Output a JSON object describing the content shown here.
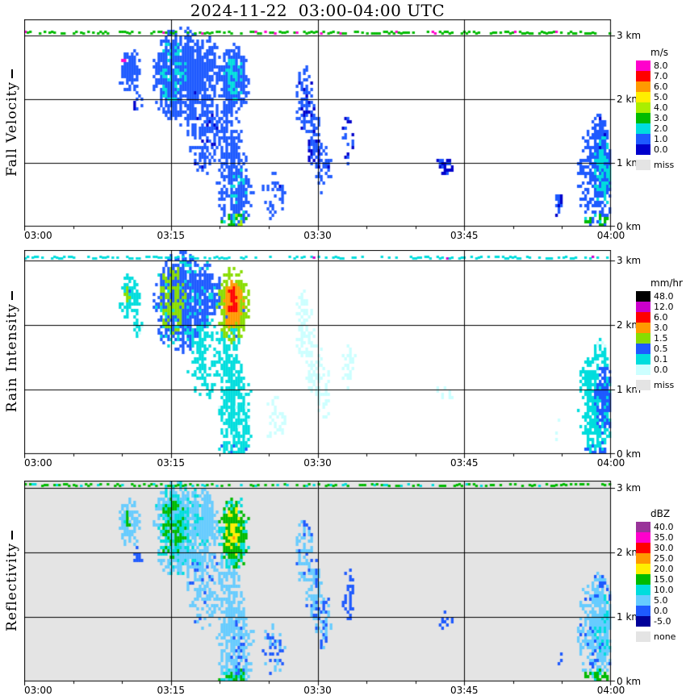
{
  "title": "2024-11-22  03:00-04:00 UTC",
  "axes": {
    "x_ticks": [
      "03:00",
      "03:15",
      "03:30",
      "03:45",
      "04:00"
    ],
    "y_ticks": [
      "0 km",
      "1 km",
      "2 km",
      "3 km"
    ]
  },
  "echo_format": "[time_min, alt_km, half_width_min, half_height_km, density, value]",
  "chart_data": [
    {
      "type": "heatmap",
      "title": "Fall Velocity",
      "unit": "m/s",
      "background": "#ffffff",
      "x_range_minutes": [
        0,
        60
      ],
      "y_range_km": [
        0,
        3.2
      ],
      "scale": [
        {
          "label": "8.0",
          "level": 8,
          "color": "#ff00cc"
        },
        {
          "label": "7.0",
          "level": 7,
          "color": "#ff0000"
        },
        {
          "label": "6.0",
          "level": 6,
          "color": "#ff9900"
        },
        {
          "label": "5.0",
          "level": 5,
          "color": "#ffee00"
        },
        {
          "label": "4.0",
          "level": 4,
          "color": "#aaee00"
        },
        {
          "label": "3.0",
          "level": 3,
          "color": "#00bb00"
        },
        {
          "label": "2.0",
          "level": 2,
          "color": "#00dddd"
        },
        {
          "label": "1.0",
          "level": 1,
          "color": "#1e5aff"
        },
        {
          "label": "0.0",
          "level": 0,
          "color": "#0000cc"
        }
      ],
      "missing": {
        "label": "miss",
        "color": "#e4e4e4"
      },
      "speckles": {
        "density": 0.55,
        "value": 3.2,
        "alt_value": 8.2,
        "alt_prob": 0.05
      },
      "echoes": [
        [
          10.8,
          2.45,
          1.2,
          0.38,
          0.8,
          1.5
        ],
        [
          11.6,
          1.95,
          0.5,
          0.18,
          0.5,
          1.2
        ],
        [
          10.2,
          2.6,
          0.18,
          0.07,
          1.0,
          8.2
        ],
        [
          16.0,
          2.35,
          2.9,
          0.8,
          0.92,
          1.4
        ],
        [
          15.2,
          2.4,
          1.4,
          0.55,
          0.6,
          2.2
        ],
        [
          18.6,
          2.5,
          1.6,
          0.5,
          0.8,
          1.4
        ],
        [
          21.4,
          2.3,
          1.7,
          0.6,
          0.95,
          1.6
        ],
        [
          21.4,
          2.32,
          1.05,
          0.4,
          0.9,
          1.9
        ],
        [
          21.3,
          2.35,
          0.55,
          0.24,
          0.9,
          2.3
        ],
        [
          18.3,
          1.55,
          1.7,
          0.75,
          0.55,
          1.3
        ],
        [
          21.0,
          1.35,
          1.3,
          0.85,
          0.6,
          1.5
        ],
        [
          21.6,
          0.6,
          1.9,
          0.8,
          0.62,
          1.6
        ],
        [
          21.9,
          0.45,
          0.95,
          0.55,
          0.5,
          1.9
        ],
        [
          21.5,
          0.07,
          1.7,
          0.12,
          0.7,
          3.4
        ],
        [
          25.6,
          0.5,
          1.3,
          0.4,
          0.32,
          1.3
        ],
        [
          28.6,
          2.0,
          0.95,
          0.55,
          0.6,
          1.2
        ],
        [
          29.6,
          1.4,
          0.85,
          0.55,
          0.6,
          1.2
        ],
        [
          30.6,
          0.95,
          0.85,
          0.45,
          0.55,
          1.2
        ],
        [
          33.2,
          1.35,
          0.75,
          0.4,
          0.5,
          1.1
        ],
        [
          43.0,
          0.95,
          0.95,
          0.14,
          0.6,
          1.0
        ],
        [
          58.5,
          0.8,
          1.9,
          0.9,
          0.78,
          1.5
        ],
        [
          59.3,
          0.85,
          1.1,
          0.55,
          0.85,
          2.3
        ],
        [
          58.8,
          1.45,
          0.85,
          0.35,
          0.6,
          1.2
        ],
        [
          58.5,
          0.08,
          1.3,
          0.12,
          0.65,
          3.2
        ],
        [
          54.6,
          0.35,
          0.45,
          0.22,
          0.5,
          1.1
        ]
      ]
    },
    {
      "type": "heatmap",
      "title": "Rain Intensity",
      "unit": "mm/hr",
      "background": "#ffffff",
      "x_range_minutes": [
        0,
        60
      ],
      "y_range_km": [
        0,
        3.2
      ],
      "scale": [
        {
          "label": "48.0",
          "level": 48,
          "color": "#000000"
        },
        {
          "label": "12.0",
          "level": 12,
          "color": "#cc00cc"
        },
        {
          "label": "6.0",
          "level": 6,
          "color": "#ff0000"
        },
        {
          "label": "3.0",
          "level": 3,
          "color": "#ff9900"
        },
        {
          "label": "1.5",
          "level": 1.5,
          "color": "#88dd00"
        },
        {
          "label": "0.5",
          "level": 0.5,
          "color": "#1e5aff"
        },
        {
          "label": "0.1",
          "level": 0.1,
          "color": "#00dddd"
        },
        {
          "label": "0.0",
          "level": 0,
          "color": "#ccffff"
        }
      ],
      "missing": {
        "label": "miss",
        "color": "#e4e4e4"
      },
      "speckles": {
        "density": 0.5,
        "value": 0.15,
        "alt_value": 13,
        "alt_prob": 0.03
      },
      "echoes": [
        [
          10.8,
          2.45,
          1.2,
          0.38,
          0.8,
          0.4
        ],
        [
          11.6,
          1.95,
          0.5,
          0.18,
          0.5,
          0.12
        ],
        [
          10.6,
          2.5,
          0.35,
          0.14,
          0.9,
          1.8
        ],
        [
          16.0,
          2.35,
          2.9,
          0.8,
          0.92,
          0.6
        ],
        [
          15.2,
          2.4,
          1.4,
          0.55,
          0.85,
          1.8
        ],
        [
          18.6,
          2.5,
          1.6,
          0.5,
          0.8,
          0.55
        ],
        [
          21.4,
          2.3,
          1.7,
          0.6,
          0.95,
          2.0
        ],
        [
          21.4,
          2.32,
          1.05,
          0.4,
          0.95,
          4.0
        ],
        [
          21.3,
          2.35,
          0.55,
          0.24,
          1.0,
          7.5
        ],
        [
          18.3,
          1.55,
          1.7,
          0.75,
          0.55,
          0.15
        ],
        [
          21.0,
          1.35,
          1.3,
          0.85,
          0.6,
          0.2
        ],
        [
          21.6,
          0.6,
          1.9,
          0.8,
          0.62,
          0.12
        ],
        [
          21.9,
          0.45,
          0.95,
          0.55,
          0.5,
          0.3
        ],
        [
          21.5,
          0.07,
          1.7,
          0.12,
          0.7,
          0.45
        ],
        [
          25.6,
          0.5,
          1.3,
          0.4,
          0.32,
          0.06
        ],
        [
          28.6,
          2.0,
          0.95,
          0.55,
          0.6,
          0.07
        ],
        [
          29.6,
          1.4,
          0.85,
          0.55,
          0.6,
          0.07
        ],
        [
          30.6,
          0.95,
          0.85,
          0.45,
          0.55,
          0.06
        ],
        [
          33.2,
          1.35,
          0.75,
          0.4,
          0.5,
          0.05
        ],
        [
          43.0,
          0.95,
          0.95,
          0.14,
          0.6,
          0.05
        ],
        [
          58.5,
          0.8,
          1.9,
          0.9,
          0.78,
          0.15
        ],
        [
          59.3,
          0.85,
          1.1,
          0.55,
          0.85,
          0.6
        ],
        [
          58.8,
          1.45,
          0.85,
          0.35,
          0.6,
          0.1
        ],
        [
          58.5,
          0.08,
          1.3,
          0.12,
          0.65,
          0.5
        ],
        [
          54.6,
          0.35,
          0.45,
          0.22,
          0.5,
          0.06
        ]
      ]
    },
    {
      "type": "heatmap",
      "title": "Reflectivity",
      "unit": "dBZ",
      "background": "#e4e4e4",
      "x_range_minutes": [
        0,
        60
      ],
      "y_range_km": [
        0,
        3.2
      ],
      "scale": [
        {
          "label": "40.0",
          "level": 40,
          "color": "#993399"
        },
        {
          "label": "35.0",
          "level": 35,
          "color": "#ff00cc"
        },
        {
          "label": "30.0",
          "level": 30,
          "color": "#ff0000"
        },
        {
          "label": "25.0",
          "level": 25,
          "color": "#ff9900"
        },
        {
          "label": "20.0",
          "level": 20,
          "color": "#ffee00"
        },
        {
          "label": "15.0",
          "level": 15,
          "color": "#00bb00"
        },
        {
          "label": "10.0",
          "level": 10,
          "color": "#00dddd"
        },
        {
          "label": "5.0",
          "level": 5,
          "color": "#66ccff"
        },
        {
          "label": "0.0",
          "level": 0,
          "color": "#1e5aff"
        },
        {
          "label": "-5.0",
          "level": -5,
          "color": "#000099"
        }
      ],
      "missing": {
        "label": "none",
        "color": "#e4e4e4"
      },
      "speckles": {
        "density": 0.55,
        "value": 16,
        "alt_value": 11,
        "alt_prob": 0.2
      },
      "echoes": [
        [
          10.8,
          2.45,
          1.2,
          0.38,
          0.8,
          8
        ],
        [
          11.6,
          1.95,
          0.5,
          0.18,
          0.5,
          3
        ],
        [
          10.6,
          2.5,
          0.35,
          0.14,
          0.9,
          16
        ],
        [
          16.0,
          2.35,
          2.9,
          0.8,
          0.92,
          9
        ],
        [
          15.2,
          2.4,
          1.4,
          0.55,
          0.85,
          16
        ],
        [
          18.6,
          2.5,
          1.6,
          0.5,
          0.8,
          8
        ],
        [
          21.4,
          2.3,
          1.7,
          0.6,
          0.95,
          16
        ],
        [
          21.4,
          2.32,
          1.05,
          0.4,
          0.95,
          19
        ],
        [
          21.3,
          2.35,
          0.55,
          0.24,
          1.0,
          21
        ],
        [
          18.3,
          1.55,
          1.7,
          0.75,
          0.55,
          6
        ],
        [
          21.0,
          1.35,
          1.3,
          0.85,
          0.6,
          7
        ],
        [
          21.6,
          0.6,
          1.9,
          0.8,
          0.62,
          7
        ],
        [
          21.9,
          0.45,
          0.95,
          0.55,
          0.5,
          1
        ],
        [
          21.5,
          0.07,
          1.7,
          0.12,
          0.7,
          16
        ],
        [
          25.6,
          0.5,
          1.3,
          0.4,
          0.32,
          5
        ],
        [
          28.6,
          2.0,
          0.95,
          0.55,
          0.6,
          6
        ],
        [
          29.6,
          1.4,
          0.85,
          0.55,
          0.6,
          6
        ],
        [
          30.6,
          0.95,
          0.85,
          0.45,
          0.55,
          5
        ],
        [
          33.2,
          1.35,
          0.75,
          0.4,
          0.5,
          4
        ],
        [
          43.0,
          0.95,
          0.95,
          0.14,
          0.6,
          2
        ],
        [
          58.5,
          0.8,
          1.9,
          0.9,
          0.78,
          6
        ],
        [
          59.3,
          0.85,
          1.1,
          0.55,
          0.85,
          9
        ],
        [
          58.8,
          1.45,
          0.85,
          0.35,
          0.6,
          5
        ],
        [
          58.5,
          0.08,
          1.3,
          0.12,
          0.65,
          16
        ],
        [
          54.6,
          0.35,
          0.45,
          0.22,
          0.5,
          4
        ]
      ]
    }
  ]
}
